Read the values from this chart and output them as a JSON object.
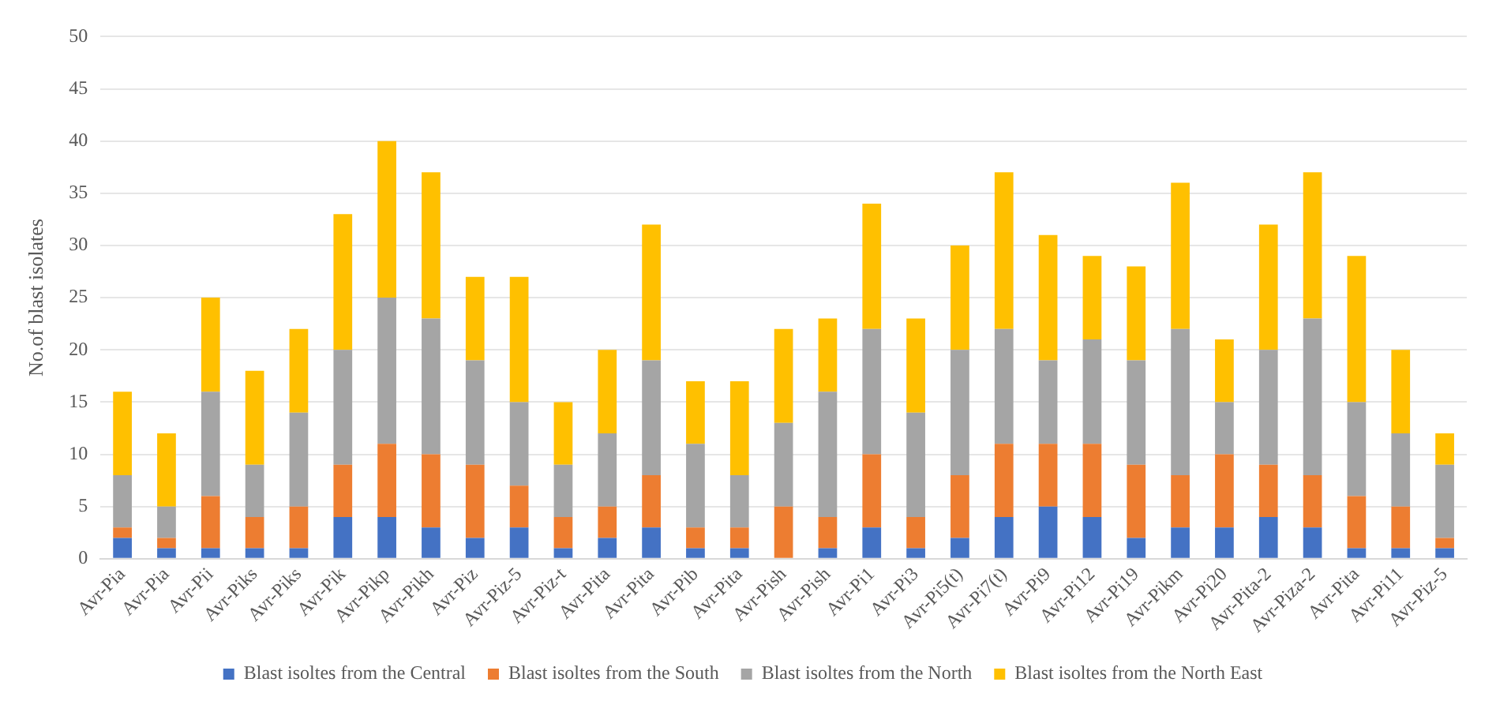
{
  "chart_data": {
    "type": "bar",
    "stacked": true,
    "ylabel": "No.of blast isolates",
    "categories": [
      "Avr-Pia",
      "Avr-Pia",
      "Avr-Pii",
      "Avr-Piks",
      "Avr-Piks",
      "Avr-Pik",
      "Avr-Pikp",
      "Avr-Pikh",
      "Avr-Piz",
      "Avr-Piz-5",
      "Avr-Piz-t",
      "Avr-Pita",
      "Avr-Pita",
      "Avr-Pib",
      "Avr-Pita",
      "Avr-Pish",
      "Avr-Pish",
      "Avr-Pi1",
      "Avr-Pi3",
      "Avr-Pi5(t)",
      "Avr-Pi7(t)",
      "Avr-Pi9",
      "Avr-Pi12",
      "Avr-Pi19",
      "Avr-Pikm",
      "Avr-Pi20",
      "Avr-Pita-2",
      "Avr-Piza-2",
      "Avr-Pita",
      "Avr-Pi11",
      "Avr-Piz-5"
    ],
    "series": [
      {
        "name": "Blast isoltes from the Central",
        "color": "#4472c4",
        "values": [
          2,
          1,
          1,
          1,
          1,
          4,
          4,
          3,
          2,
          3,
          1,
          2,
          3,
          1,
          1,
          0,
          1,
          3,
          1,
          2,
          4,
          5,
          4,
          2,
          3,
          3,
          4,
          3,
          1,
          1,
          1
        ]
      },
      {
        "name": "Blast isoltes from the South",
        "color": "#ed7d31",
        "values": [
          1,
          1,
          5,
          3,
          4,
          5,
          7,
          7,
          7,
          4,
          3,
          3,
          5,
          2,
          2,
          5,
          3,
          7,
          3,
          6,
          7,
          6,
          7,
          7,
          5,
          7,
          5,
          5,
          5,
          4,
          1
        ]
      },
      {
        "name": "Blast isoltes from the North",
        "color": "#a5a5a5",
        "values": [
          5,
          3,
          10,
          5,
          9,
          11,
          14,
          13,
          10,
          8,
          5,
          7,
          11,
          8,
          5,
          8,
          12,
          12,
          10,
          12,
          11,
          8,
          10,
          10,
          14,
          5,
          11,
          15,
          9,
          7,
          7
        ]
      },
      {
        "name": "Blast isoltes from the North East",
        "color": "#ffc000",
        "values": [
          8,
          7,
          9,
          9,
          8,
          13,
          15,
          14,
          8,
          12,
          6,
          8,
          13,
          6,
          9,
          9,
          7,
          12,
          9,
          10,
          15,
          12,
          8,
          9,
          14,
          6,
          12,
          14,
          14,
          8,
          3
        ]
      }
    ],
    "ylim": [
      0,
      50
    ],
    "yticks": [
      0,
      5,
      10,
      15,
      20,
      25,
      30,
      35,
      40,
      45,
      50
    ],
    "grid": "y",
    "legend": "bottom"
  }
}
